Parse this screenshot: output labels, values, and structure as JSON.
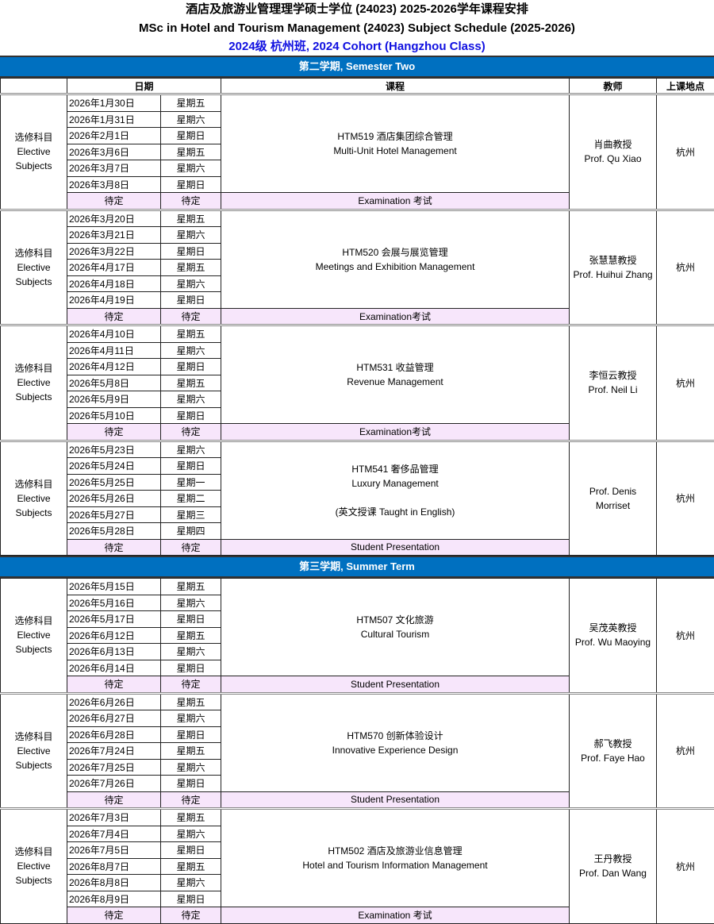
{
  "title_cn": "酒店及旅游业管理理学硕士学位 (24023) 2025-2026学年课程安排",
  "title_en": "MSc in Hotel and Tourism Management (24023) Subject Schedule (2025-2026)",
  "cohort": "2024级 杭州班, 2024 Cohort (Hangzhou Class)",
  "colors": {
    "semester_bar": "#0070c0",
    "cohort_text": "#1010e0",
    "pending_row": "#f7e6fb"
  },
  "headers": {
    "date": "日期",
    "course": "课程",
    "teacher": "教师",
    "location": "上课地点"
  },
  "semesters": [
    {
      "title": "第二学期, Semester Two",
      "blocks": [
        {
          "type": [
            "选修科目",
            "Elective",
            "Subjects"
          ],
          "dates": [
            [
              "2026年1月30日",
              "星期五"
            ],
            [
              "2026年1月31日",
              "星期六"
            ],
            [
              "2026年2月1日",
              "星期日"
            ],
            [
              "2026年3月6日",
              "星期五"
            ],
            [
              "2026年3月7日",
              "星期六"
            ],
            [
              "2026年3月8日",
              "星期日"
            ]
          ],
          "course": [
            "HTM519 酒店集团综合管理",
            "Multi-Unit Hotel Management"
          ],
          "teacher": [
            "肖曲教授",
            "Prof. Qu Xiao"
          ],
          "location": "杭州",
          "pending": [
            "待定",
            "待定",
            "Examination 考试"
          ]
        },
        {
          "type": [
            "选修科目",
            "Elective",
            "Subjects"
          ],
          "dates": [
            [
              "2026年3月20日",
              "星期五"
            ],
            [
              "2026年3月21日",
              "星期六"
            ],
            [
              "2026年3月22日",
              "星期日"
            ],
            [
              "2026年4月17日",
              "星期五"
            ],
            [
              "2026年4月18日",
              "星期六"
            ],
            [
              "2026年4月19日",
              "星期日"
            ]
          ],
          "course": [
            "HTM520 会展与展览管理",
            "Meetings and Exhibition Management"
          ],
          "teacher": [
            "张慧慧教授",
            "Prof. Huihui Zhang"
          ],
          "location": "杭州",
          "pending": [
            "待定",
            "待定",
            "Examination考试"
          ]
        },
        {
          "type": [
            "选修科目",
            "Elective",
            "Subjects"
          ],
          "dates": [
            [
              "2026年4月10日",
              "星期五"
            ],
            [
              "2026年4月11日",
              "星期六"
            ],
            [
              "2026年4月12日",
              "星期日"
            ],
            [
              "2026年5月8日",
              "星期五"
            ],
            [
              "2026年5月9日",
              "星期六"
            ],
            [
              "2026年5月10日",
              "星期日"
            ]
          ],
          "course": [
            "HTM531 收益管理",
            "Revenue Management"
          ],
          "teacher": [
            "李恒云教授",
            "Prof. Neil Li"
          ],
          "location": "杭州",
          "pending": [
            "待定",
            "待定",
            "Examination考试"
          ]
        },
        {
          "type": [
            "选修科目",
            "Elective",
            "Subjects"
          ],
          "dates": [
            [
              "2026年5月23日",
              "星期六"
            ],
            [
              "2026年5月24日",
              "星期日"
            ],
            [
              "2026年5月25日",
              "星期一"
            ],
            [
              "2026年5月26日",
              "星期二"
            ],
            [
              "2026年5月27日",
              "星期三"
            ],
            [
              "2026年5月28日",
              "星期四"
            ]
          ],
          "course": [
            "HTM541 奢侈品管理",
            "Luxury Management",
            "",
            "(英文授课 Taught in English)"
          ],
          "teacher": [
            "Prof. Denis",
            "Morriset"
          ],
          "location": "杭州",
          "pending": [
            "待定",
            "待定",
            "Student Presentation"
          ]
        }
      ]
    },
    {
      "title": "第三学期, Summer Term",
      "blocks": [
        {
          "type": [
            "选修科目",
            "Elective",
            "Subjects"
          ],
          "dates": [
            [
              "2026年5月15日",
              "星期五"
            ],
            [
              "2026年5月16日",
              "星期六"
            ],
            [
              "2026年5月17日",
              "星期日"
            ],
            [
              "2026年6月12日",
              "星期五"
            ],
            [
              "2026年6月13日",
              "星期六"
            ],
            [
              "2026年6月14日",
              "星期日"
            ]
          ],
          "course": [
            "HTM507 文化旅游",
            "Cultural Tourism"
          ],
          "teacher": [
            "吴茂英教授",
            "Prof. Wu Maoying"
          ],
          "location": "杭州",
          "pending": [
            "待定",
            "待定",
            "Student Presentation"
          ]
        },
        {
          "type": [
            "选修科目",
            "Elective",
            "Subjects"
          ],
          "dates": [
            [
              "2026年6月26日",
              "星期五"
            ],
            [
              "2026年6月27日",
              "星期六"
            ],
            [
              "2026年6月28日",
              "星期日"
            ],
            [
              "2026年7月24日",
              "星期五"
            ],
            [
              "2026年7月25日",
              "星期六"
            ],
            [
              "2026年7月26日",
              "星期日"
            ]
          ],
          "course": [
            "HTM570 创新体验设计",
            "Innovative Experience Design"
          ],
          "teacher": [
            "郝飞教授",
            "Prof. Faye Hao"
          ],
          "location": "杭州",
          "pending": [
            "待定",
            "待定",
            "Student Presentation"
          ]
        },
        {
          "type": [
            "选修科目",
            "Elective",
            "Subjects"
          ],
          "dates": [
            [
              "2026年7月3日",
              "星期五"
            ],
            [
              "2026年7月4日",
              "星期六"
            ],
            [
              "2026年7月5日",
              "星期日"
            ],
            [
              "2026年8月7日",
              "星期五"
            ],
            [
              "2026年8月8日",
              "星期六"
            ],
            [
              "2026年8月9日",
              "星期日"
            ]
          ],
          "course": [
            "HTM502 酒店及旅游业信息管理",
            "Hotel and Tourism Information Management"
          ],
          "teacher": [
            "王丹教授",
            "Prof. Dan Wang"
          ],
          "location": "杭州",
          "pending": [
            "待定",
            "待定",
            "Examination 考试"
          ]
        }
      ]
    }
  ]
}
